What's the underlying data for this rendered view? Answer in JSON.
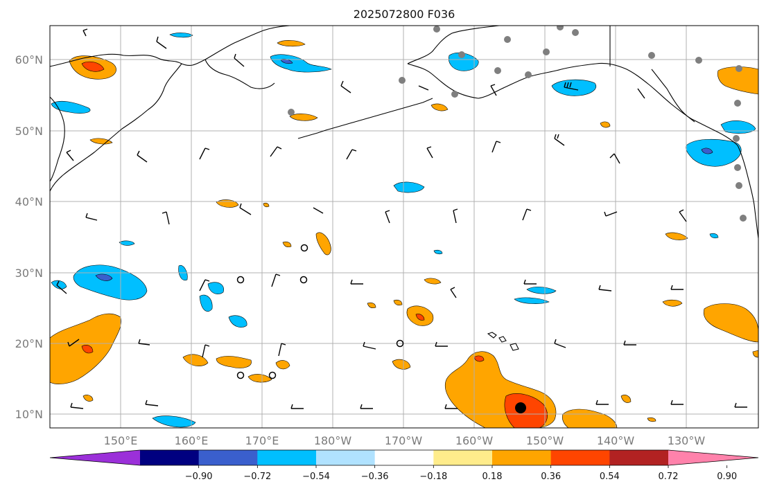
{
  "title": "2025072800 F036",
  "map": {
    "lat_labels": [
      "60°N",
      "50°N",
      "40°N",
      "30°N",
      "20°N",
      "10°N"
    ],
    "lon_labels": [
      "150°E",
      "160°E",
      "170°E",
      "180°W",
      "170°W",
      "160°W",
      "150°W",
      "140°W",
      "130°W"
    ],
    "frame_color": "#000000",
    "grid_color": "#b0b0b0",
    "land_outline_color": "#000000",
    "station_marker_color": "#7f7f7f"
  },
  "colorbar": {
    "ticks": [
      "−0.90",
      "−0.72",
      "−0.54",
      "−0.36",
      "−0.18",
      "0.18",
      "0.36",
      "0.54",
      "0.72",
      "0.90"
    ],
    "colors": [
      "#9b30d9",
      "#000080",
      "#3a5fcd",
      "#00bfff",
      "#b0e2ff",
      "#ffffff",
      "#ffec8b",
      "#ffa500",
      "#ff4500",
      "#b22222",
      "#ff82ab"
    ],
    "extend": "both"
  }
}
